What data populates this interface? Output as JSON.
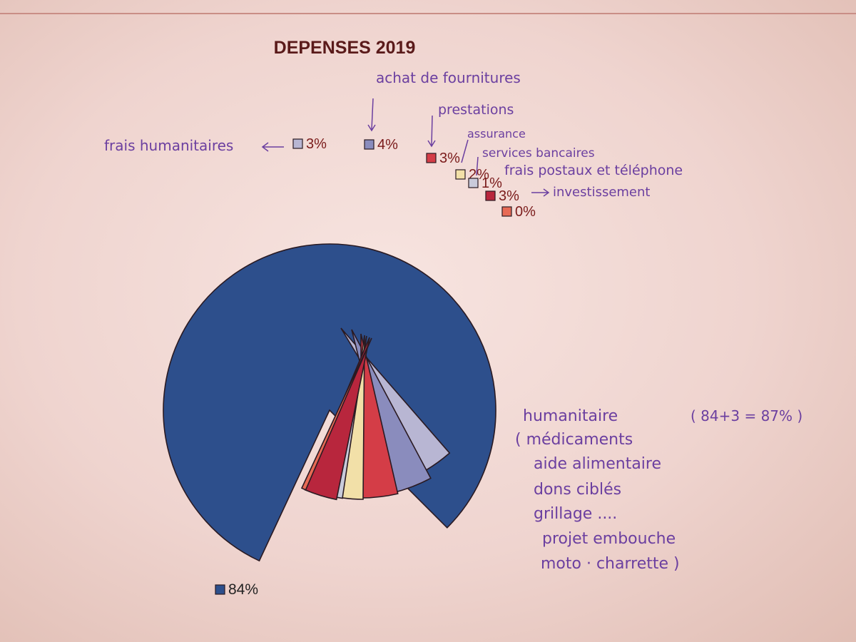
{
  "chart_data": {
    "type": "pie",
    "title": "DEPENSES 2019",
    "slices": [
      {
        "value": 84,
        "label": "84%",
        "color": "#2d4f8c"
      },
      {
        "value": 3,
        "label": "3%",
        "color": "#b8b6d3"
      },
      {
        "value": 4,
        "label": "4%",
        "color": "#8a8cbd"
      },
      {
        "value": 3,
        "label": "3%",
        "color": "#d43d47"
      },
      {
        "value": 2,
        "label": "2%",
        "color": "#f2e0a8"
      },
      {
        "value": 1,
        "label": "1%",
        "color": "#c9cbdb"
      },
      {
        "value": 3,
        "label": "3%",
        "color": "#b8263d"
      },
      {
        "value": 0,
        "label": "0%",
        "color": "#e76a55"
      }
    ]
  },
  "annotations": {
    "frais_humanitaires": "frais humanitaires",
    "achat_fournitures": "achat de fournitures",
    "prestations": "prestations",
    "assurance": "assurance",
    "services_bancaires": "services bancaires",
    "frais_postaux": "frais postaux et téléphone",
    "investissement": "investissement",
    "humanitaire_lines": [
      "humanitaire",
      "( médicaments",
      "aide alimentaire",
      "dons ciblés",
      "grillage ....",
      "projet embouche",
      "moto · charrette )"
    ],
    "total_note": "( 84+3 = 87% )"
  },
  "colors": {
    "handwriting": "#6b3fa0",
    "title": "#5a1a1a",
    "label": "#7a1b1b"
  }
}
